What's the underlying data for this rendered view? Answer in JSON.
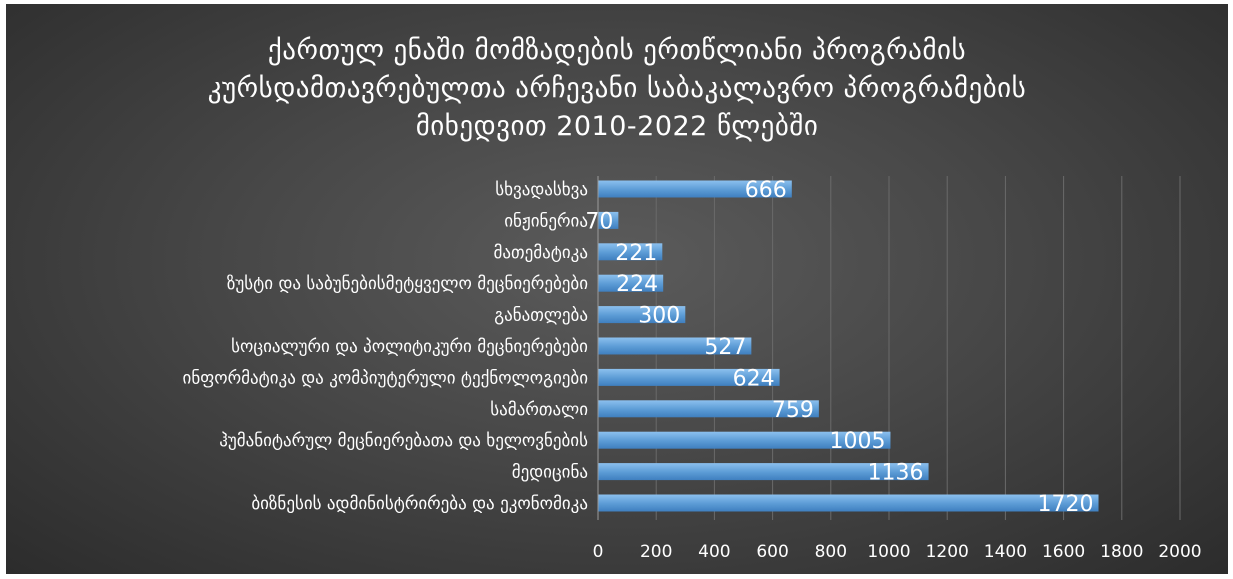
{
  "chart_data": {
    "type": "bar",
    "orientation": "horizontal",
    "title_lines": [
      "ქართულ ენაში მომზადების ერთწლიანი პროგრამის",
      "კურსდამთავრებულთა არჩევანი საბაკალავრო პროგრამების",
      "მიხედვით 2010-2022 წლებში"
    ],
    "categories": [
      "სხვადასხვა",
      "ინჟინერია",
      "მათემატიკა",
      "ზუსტი და საბუნებისმეტყველო მეცნიერებები",
      "განათლება",
      "სოციალური და პოლიტიკური მეცნიერებები",
      "ინფორმატიკა და კომპიუტერული ტექნოლოგიები",
      "სამართალი",
      "ჰუმანიტარულ მეცნიერებათა და ხელოვნების",
      "მედიცინა",
      "ბიზნესის ადმინისტრირება და ეკონომიკა"
    ],
    "values": [
      666,
      70,
      221,
      224,
      300,
      527,
      624,
      759,
      1005,
      1136,
      1720
    ],
    "x_ticks": [
      "0",
      "200",
      "400",
      "600",
      "800",
      "1000",
      "1200",
      "1400",
      "1600",
      "1800",
      "2000"
    ],
    "xlim": [
      0,
      2000
    ],
    "grid": true,
    "legend": "none",
    "colors": {
      "bar_top": "#8cc0ee",
      "bar_mid": "#5b9bd5",
      "bar_bottom": "#3f7fbf",
      "text": "#ffffff",
      "gridline": "#6a6a6a",
      "axis": "#9a9a9a"
    }
  }
}
